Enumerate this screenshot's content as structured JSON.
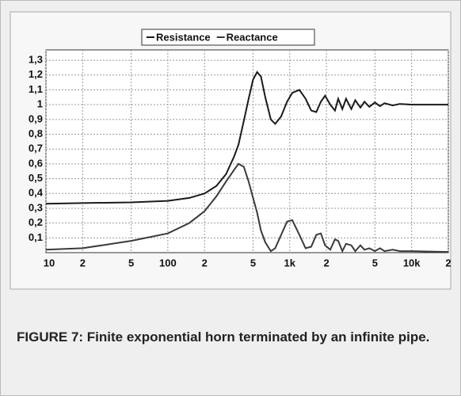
{
  "chart_data": {
    "type": "line",
    "caption": "FIGURE 7: Finite exponential horn terminated by an infinite pipe.",
    "x": [
      10,
      20,
      50,
      100,
      150,
      200,
      250,
      300,
      350,
      380,
      420,
      460,
      500,
      540,
      580,
      630,
      700,
      760,
      850,
      950,
      1050,
      1200,
      1350,
      1500,
      1650,
      1800,
      1950,
      2150,
      2350,
      2500,
      2700,
      2900,
      3200,
      3450,
      3800,
      4100,
      4500,
      5000,
      5500,
      6000,
      7000,
      8000,
      10000,
      20000
    ],
    "series": [
      {
        "name": "Resistance",
        "color": "#1a1a1a",
        "values": [
          0.33,
          0.335,
          0.34,
          0.35,
          0.37,
          0.4,
          0.45,
          0.53,
          0.65,
          0.73,
          0.89,
          1.04,
          1.17,
          1.22,
          1.19,
          1.05,
          0.9,
          0.87,
          0.92,
          1.02,
          1.08,
          1.1,
          1.04,
          0.96,
          0.95,
          1.02,
          1.06,
          1.0,
          0.96,
          1.04,
          0.97,
          1.04,
          0.97,
          1.03,
          0.98,
          1.02,
          0.985,
          1.015,
          0.99,
          1.01,
          0.995,
          1.005,
          1.0,
          1.0
        ]
      },
      {
        "name": "Reactance",
        "color": "#3a3a3a",
        "values": [
          0.02,
          0.03,
          0.08,
          0.13,
          0.2,
          0.28,
          0.38,
          0.48,
          0.56,
          0.6,
          0.58,
          0.48,
          0.37,
          0.27,
          0.15,
          0.07,
          0.01,
          0.03,
          0.12,
          0.21,
          0.22,
          0.12,
          0.03,
          0.04,
          0.12,
          0.13,
          0.05,
          0.02,
          0.09,
          0.08,
          0.01,
          0.06,
          0.05,
          0.01,
          0.05,
          0.02,
          0.03,
          0.01,
          0.03,
          0.01,
          0.02,
          0.01,
          0.01,
          0.005
        ]
      }
    ],
    "xscale": "log",
    "xlim": [
      10,
      20000
    ],
    "xticks": [
      10,
      {
        "value": 20,
        "label": "2"
      },
      {
        "value": 50,
        "label": "5"
      },
      100,
      {
        "value": 200,
        "label": "2"
      },
      {
        "value": 500,
        "label": "5"
      },
      {
        "value": 1000,
        "label": "1k"
      },
      {
        "value": 2000,
        "label": "2"
      },
      {
        "value": 5000,
        "label": "5"
      },
      {
        "value": 10000,
        "label": "10k"
      },
      {
        "value": 20000,
        "label": "2"
      }
    ],
    "ylim": [
      0,
      1.37
    ],
    "yticks": [
      {
        "value": 0.1,
        "label": "0,1"
      },
      {
        "value": 0.2,
        "label": "0,2"
      },
      {
        "value": 0.3,
        "label": "0,3"
      },
      {
        "value": 0.4,
        "label": "0,4"
      },
      {
        "value": 0.5,
        "label": "0,5"
      },
      {
        "value": 0.6,
        "label": "0,6"
      },
      {
        "value": 0.7,
        "label": "0,7"
      },
      {
        "value": 0.8,
        "label": "0,8"
      },
      {
        "value": 0.9,
        "label": "0,9"
      },
      1,
      {
        "value": 1.1,
        "label": "1,1"
      },
      {
        "value": 1.2,
        "label": "1,2"
      },
      {
        "value": 1.3,
        "label": "1,3"
      }
    ],
    "grid": true,
    "legend": "top"
  }
}
